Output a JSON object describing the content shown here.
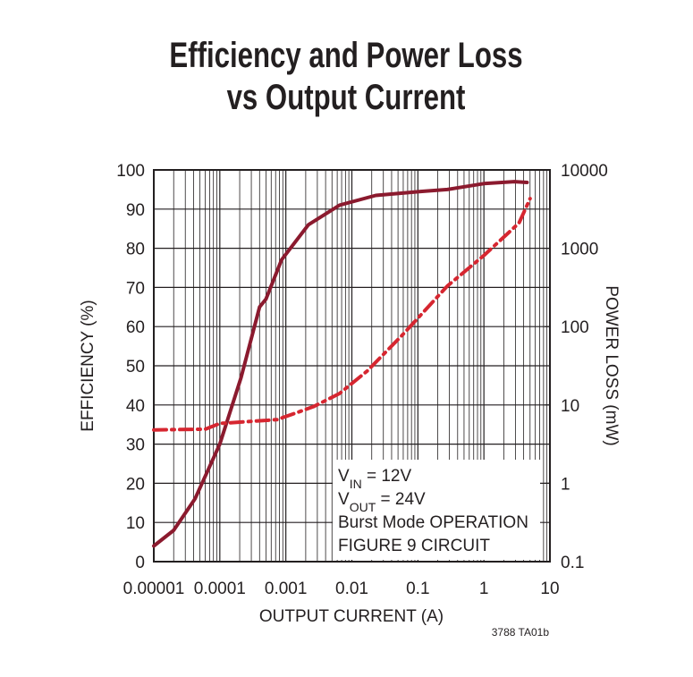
{
  "chart_data": {
    "type": "line",
    "title": [
      "Efficiency and Power Loss",
      "vs Output Current"
    ],
    "xlabel": "OUTPUT CURRENT (A)",
    "ylabel": "EFFICIENCY (%)",
    "y2label": "POWER LOSS (mW)",
    "xscale": "log",
    "y2scale": "log",
    "grid": true,
    "xlim": [
      1e-05,
      10
    ],
    "xticks": [
      1e-05,
      0.0001,
      0.001,
      0.01,
      0.1,
      1,
      10
    ],
    "ylim": [
      0,
      100
    ],
    "yticks": [
      0,
      10,
      20,
      30,
      40,
      50,
      60,
      70,
      80,
      90,
      100
    ],
    "y2lim": [
      0.1,
      10000
    ],
    "y2ticks": [
      0.1,
      1,
      10,
      100,
      1000,
      10000
    ],
    "series": [
      {
        "color": "#8b1a2e",
        "dash": "solid",
        "x": [
          1e-05,
          2e-05,
          4.2e-05,
          0.0001,
          0.00021,
          0.0004,
          0.0005,
          0.00086,
          0.0022,
          0.0065,
          0.023,
          0.11,
          0.28,
          1,
          2.9,
          4.5
        ],
        "values": [
          4,
          8,
          16,
          30,
          47,
          65,
          67,
          77,
          86,
          91,
          93.5,
          94.5,
          95,
          96.5,
          97,
          96.8
        ]
      },
      {
        "color": "#d62630",
        "dash": "dashdot",
        "axis": "y2",
        "x": [
          1e-05,
          6e-05,
          0.0001,
          0.00074,
          0.0026,
          0.0065,
          0.017,
          0.058,
          0.28,
          1,
          3.4,
          5
        ],
        "values": [
          4.8,
          4.9,
          5.8,
          6.5,
          9.5,
          14,
          27,
          78,
          330,
          810,
          2100,
          4300
        ]
      }
    ],
    "annotation_lines": [
      [
        "V",
        "IN",
        " = 12V"
      ],
      [
        "V",
        "OUT",
        " = 24V"
      ],
      [
        "Burst Mode OPERATION"
      ],
      [
        "FIGURE 9 CIRCUIT"
      ]
    ],
    "footnote": "3788 TA01b"
  }
}
